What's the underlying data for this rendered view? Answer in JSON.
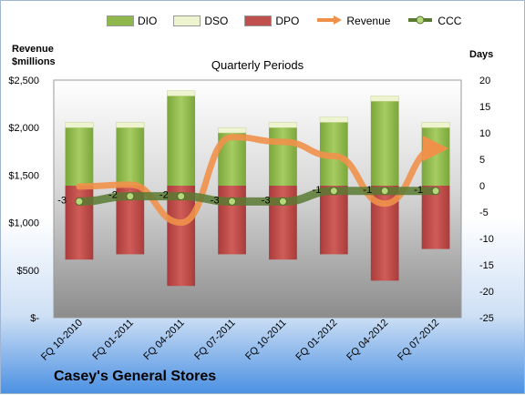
{
  "chart_data": {
    "type": "bar",
    "subtitle": "Quarterly Periods",
    "title": "Casey's General Stores",
    "left_axis_label": "Revenue $millions",
    "right_axis_label": "Days",
    "categories": [
      "FQ 10-2010",
      "FQ 01-2011",
      "FQ 04-2011",
      "FQ 07-2011",
      "FQ 10-2011",
      "FQ 01-2012",
      "FQ 04-2012",
      "FQ 07-2012"
    ],
    "left_axis": {
      "min": 0,
      "max": 2500,
      "step": 500,
      "tick_labels": [
        "$-",
        "$500",
        "$1,000",
        "$1,500",
        "$2,000",
        "$2,500"
      ]
    },
    "right_axis": {
      "min": -25,
      "max": 20,
      "step": 5,
      "tick_labels": [
        "-25",
        "-20",
        "-15",
        "-10",
        "-5",
        "0",
        "5",
        "10",
        "15",
        "20"
      ]
    },
    "series": [
      {
        "name": "DIO",
        "axis": "days",
        "color": "#8fb84c",
        "values": [
          11,
          11,
          17,
          10,
          11,
          12,
          16,
          11
        ]
      },
      {
        "name": "DSO",
        "axis": "days",
        "color": "#eef3d0",
        "values": [
          1,
          1,
          1,
          1,
          1,
          1,
          1,
          1
        ]
      },
      {
        "name": "DPO",
        "axis": "days",
        "color": "#c0504d",
        "values": [
          -14,
          -13,
          -19,
          -13,
          -14,
          -13,
          -18,
          -12
        ]
      },
      {
        "name": "Revenue",
        "axis": "revenue",
        "color": "#f0914a",
        "values": [
          1380,
          1400,
          1000,
          1900,
          1850,
          1700,
          1200,
          1780
        ]
      },
      {
        "name": "CCC",
        "axis": "days",
        "color": "#5a7a32",
        "values": [
          -3,
          -2,
          -2,
          -3,
          -3,
          -1,
          -1,
          -1
        ],
        "labels": [
          "-3",
          "-2",
          "-2",
          "-3",
          "-3",
          "-1",
          "-1",
          "-1"
        ]
      }
    ],
    "grid": false,
    "legend_position": "top"
  }
}
